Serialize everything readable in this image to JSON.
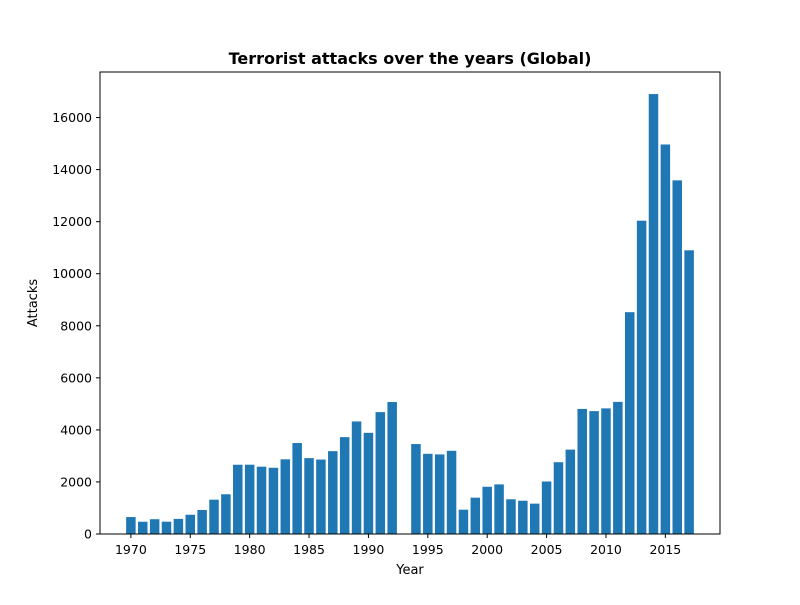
{
  "chart_data": {
    "type": "bar",
    "title": "Terrorist attacks over the years (Global)",
    "xlabel": "Year",
    "ylabel": "Attacks",
    "xlim": [
      1967.4,
      2019.6
    ],
    "ylim": [
      0,
      17750
    ],
    "xticks": [
      1970,
      1975,
      1980,
      1985,
      1990,
      1995,
      2000,
      2005,
      2010,
      2015
    ],
    "yticks": [
      0,
      2000,
      4000,
      6000,
      8000,
      10000,
      12000,
      14000,
      16000
    ],
    "grid": false,
    "bar_color": "#1f77b4",
    "categories": [
      1970,
      1971,
      1972,
      1973,
      1974,
      1975,
      1976,
      1977,
      1978,
      1979,
      1980,
      1981,
      1982,
      1983,
      1984,
      1985,
      1986,
      1987,
      1988,
      1989,
      1990,
      1991,
      1992,
      1994,
      1995,
      1996,
      1997,
      1998,
      1999,
      2000,
      2001,
      2002,
      2003,
      2004,
      2005,
      2006,
      2007,
      2008,
      2009,
      2010,
      2011,
      2012,
      2013,
      2014,
      2015,
      2016,
      2017
    ],
    "values": [
      651,
      471,
      568,
      473,
      581,
      740,
      923,
      1319,
      1526,
      2661,
      2662,
      2586,
      2544,
      2870,
      3495,
      2915,
      2860,
      3183,
      3721,
      4324,
      3887,
      4683,
      5071,
      3456,
      3081,
      3058,
      3197,
      934,
      1395,
      1814,
      1906,
      1333,
      1278,
      1166,
      2017,
      2758,
      3242,
      4805,
      4721,
      4826,
      5076,
      8522,
      12036,
      16903,
      14965,
      13587,
      10900
    ]
  }
}
